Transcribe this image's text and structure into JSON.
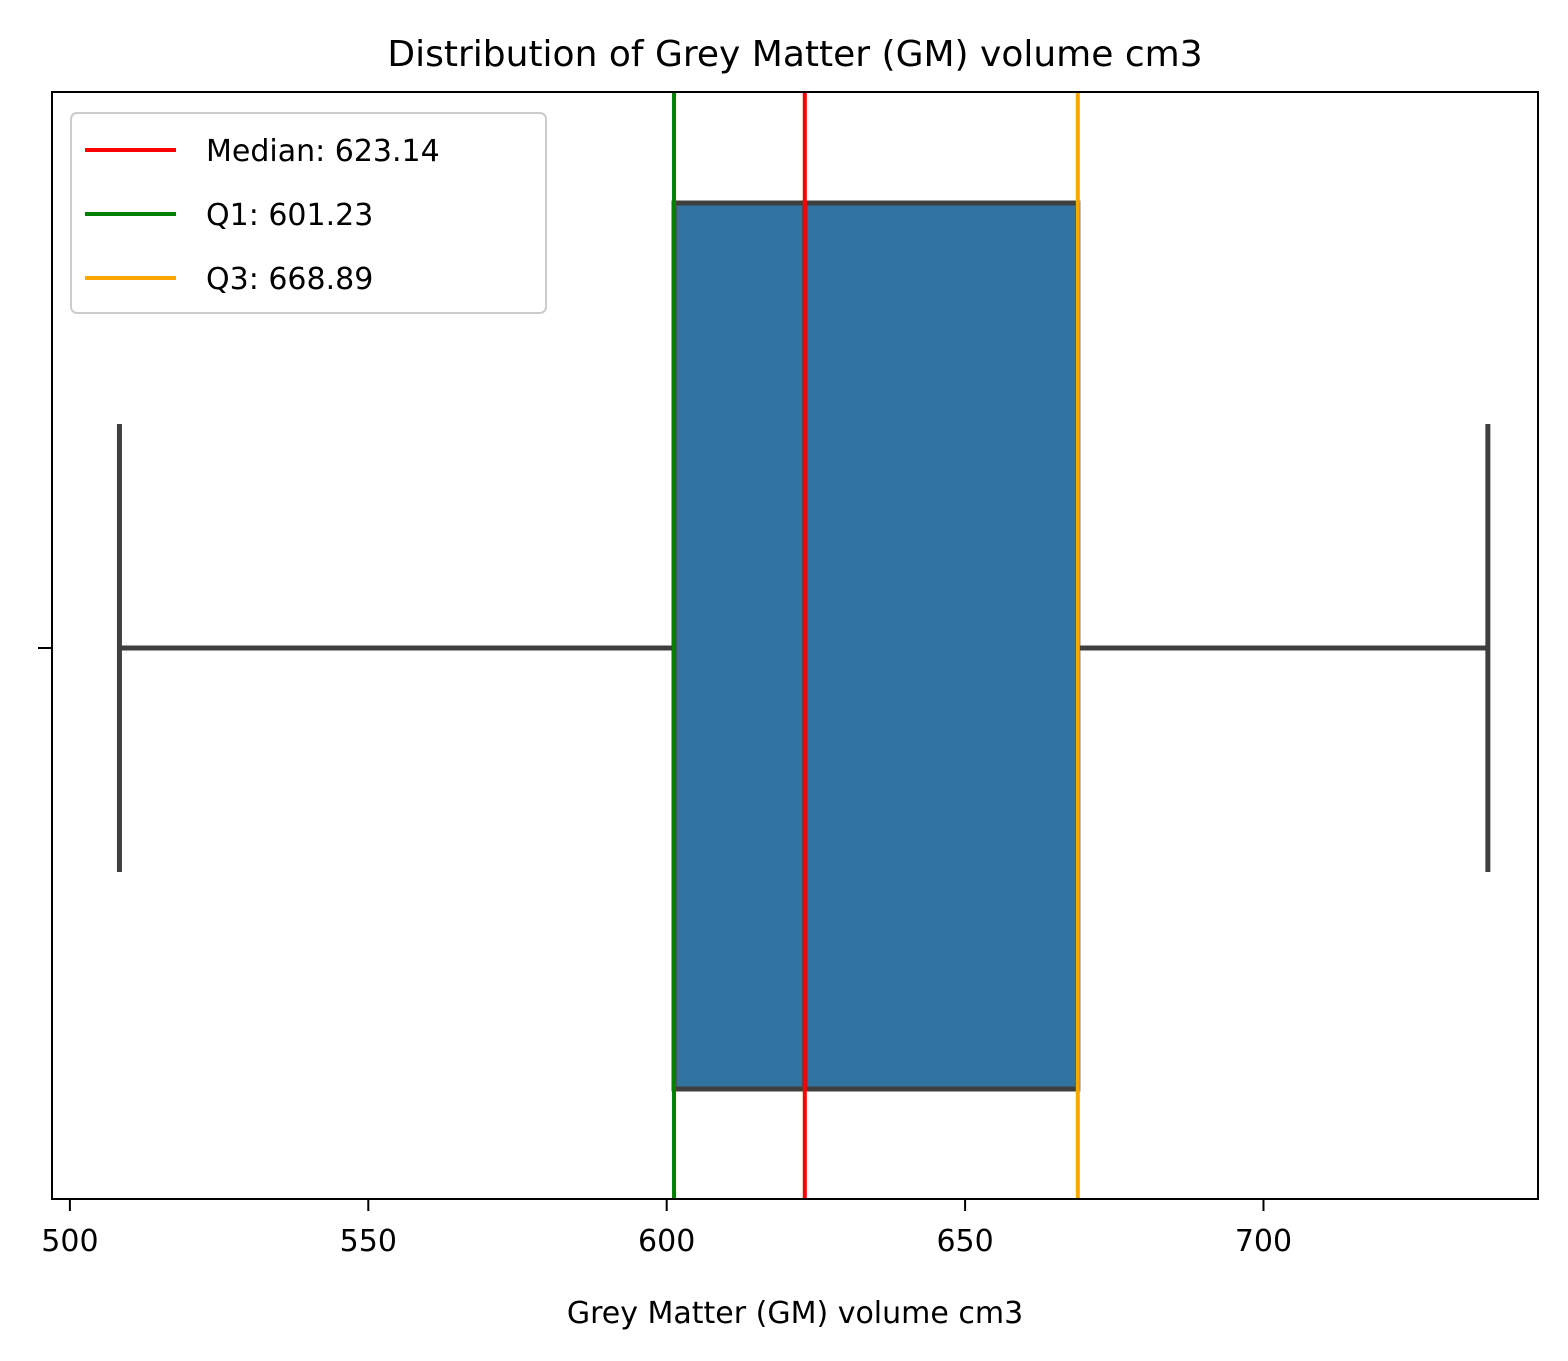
{
  "chart_data": {
    "type": "box",
    "title": "Distribution of Grey Matter (GM) volume cm3",
    "xlabel": "Grey Matter (GM) volume cm3",
    "ylabel": "",
    "xlim": [
      497,
      746
    ],
    "x_ticks": [
      500,
      550,
      600,
      650,
      700
    ],
    "x_tick_labels": [
      "500",
      "550",
      "600",
      "650",
      "700"
    ],
    "grid": false,
    "box": {
      "whisker_low": 508.3,
      "q1": 601.23,
      "median": 623.14,
      "q3": 668.89,
      "whisker_high": 737.6,
      "fill_color": "#3274a1",
      "edge_color": "#3f3f3f"
    },
    "reference_lines": [
      {
        "label": "Median: 623.14",
        "value": 623.14,
        "color": "#ff0000"
      },
      {
        "label": "Q1: 601.23",
        "value": 601.23,
        "color": "#008000"
      },
      {
        "label": "Q3: 668.89",
        "value": 668.89,
        "color": "#ffa500"
      }
    ],
    "legend_position": "upper-left"
  }
}
